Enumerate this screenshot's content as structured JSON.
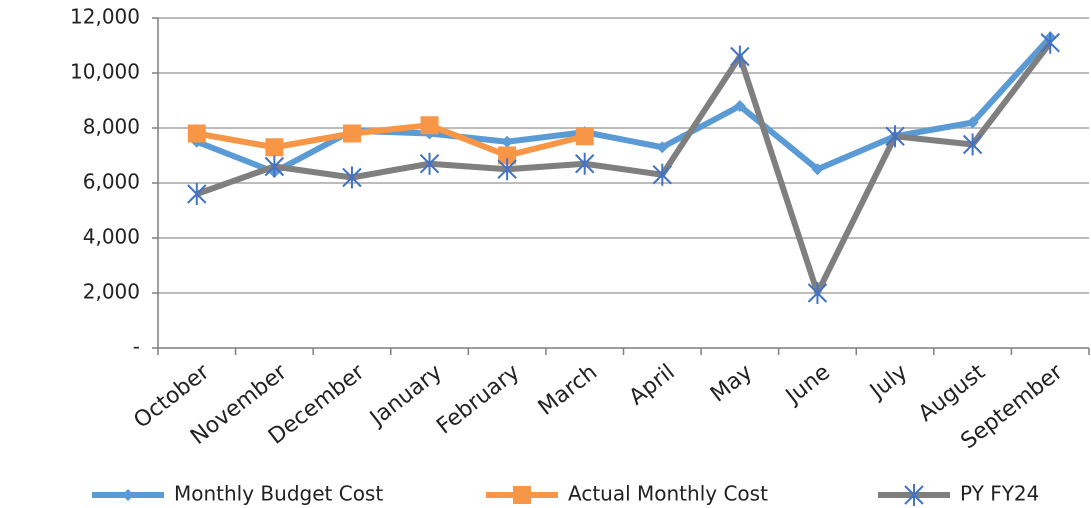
{
  "chart_data": {
    "type": "line",
    "categories": [
      "October",
      "November",
      "December",
      "January",
      "February",
      "March",
      "April",
      "May",
      "June",
      "July",
      "August",
      "September"
    ],
    "series": [
      {
        "name": "Monthly Budget Cost",
        "color": "#5b9bd5",
        "marker": "diamond",
        "values": [
          7500,
          6400,
          7900,
          7800,
          7500,
          7850,
          7300,
          8800,
          6500,
          7700,
          8200,
          11300
        ]
      },
      {
        "name": "Actual Monthly Cost",
        "color": "#f79646",
        "marker": "square",
        "values": [
          7800,
          7300,
          7800,
          8100,
          7000,
          7700,
          null,
          null,
          null,
          null,
          null,
          null
        ]
      },
      {
        "name": "PY FY24",
        "color": "#7f7f7f",
        "marker": "star",
        "values": [
          5600,
          6600,
          6200,
          6700,
          6500,
          6700,
          6300,
          10600,
          2000,
          7700,
          7400,
          11100
        ]
      }
    ],
    "ylim": [
      0,
      12000
    ],
    "yticks": [
      {
        "value": 0,
        "label": "-"
      },
      {
        "value": 2000,
        "label": "2,000"
      },
      {
        "value": 4000,
        "label": "4,000"
      },
      {
        "value": 6000,
        "label": "6,000"
      },
      {
        "value": 8000,
        "label": "8,000"
      },
      {
        "value": 10000,
        "label": "10,000"
      },
      {
        "value": 12000,
        "label": "12,000"
      }
    ],
    "grid": true,
    "legend": "bottom"
  }
}
